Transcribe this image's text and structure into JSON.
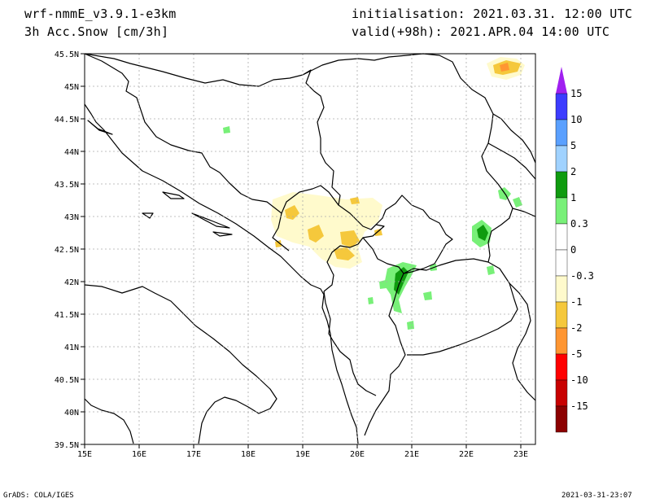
{
  "header": {
    "model": "wrf-nmmE_v3.9.1-e3km",
    "variable": "3h Acc.Snow [cm/3h]",
    "init": "initialisation: 2021.03.31.  12:00 UTC",
    "valid": "valid(+98h): 2021.APR.04 14:00 UTC"
  },
  "map": {
    "lat_labels": [
      "45.5N",
      "45N",
      "44.5N",
      "44N",
      "43.5N",
      "43N",
      "42.5N",
      "42N",
      "41.5N",
      "41N",
      "40.5N",
      "40N",
      "39.5N"
    ],
    "lon_labels": [
      "15E",
      "16E",
      "17E",
      "18E",
      "19E",
      "20E",
      "21E",
      "22E",
      "23E"
    ],
    "lat_range": [
      39.5,
      45.5
    ],
    "lon_range": [
      15,
      23.3
    ],
    "grid": "dotted"
  },
  "colorbar": {
    "labels": [
      "15",
      "10",
      "5",
      "2",
      "1",
      "0.3",
      "0",
      "-0.3",
      "-1",
      "-2",
      "-5",
      "-10",
      "-15"
    ],
    "colors": [
      "#3c3cff",
      "#5aa0ff",
      "#a0d2ff",
      "#0f9b0f",
      "#78f078",
      "#ffffff",
      "#ffffff",
      "#fffacc",
      "#f5c83c",
      "#ff9632",
      "#ff0000",
      "#c80000",
      "#8c0000"
    ],
    "top_color": "#a020f0",
    "bottom_color": "#7a0000"
  },
  "footer": {
    "left": "GrADS: COLA/IGES",
    "right": "2021-03-31-23:07"
  }
}
